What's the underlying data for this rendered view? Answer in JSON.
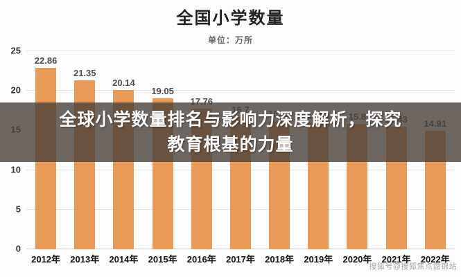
{
  "title": "全国小学数量",
  "subtitle": "单位：万所",
  "overlay": {
    "line1": "全球小学数量排名与影响力深度解析，探究",
    "line2": "教育根基的力量"
  },
  "watermark": "搜狐号@搜狐焦点盘锦站",
  "colors": {
    "bar": "#e89a56",
    "overlay_bg": "rgba(74,64,58,0.80)",
    "value_label": "#4d4d4d"
  },
  "chart_data": {
    "type": "bar",
    "title": "全国小学数量",
    "subtitle": "单位：万所",
    "xlabel": "",
    "ylabel": "",
    "categories": [
      "2012年",
      "2013年",
      "2014年",
      "2015年",
      "2016年",
      "2017年",
      "2018年",
      "2019年",
      "2020年",
      "2021年",
      "2022年"
    ],
    "values": [
      22.86,
      21.35,
      20.14,
      19.05,
      17.76,
      16.7,
      16.18,
      16.01,
      15.8,
      15.43,
      14.91
    ],
    "value_labels": [
      "22.86",
      "21.35",
      "20.14",
      "19.05",
      "17.76",
      "16.7",
      "16.18",
      "16.01",
      "15.8",
      "15.43",
      "14.91"
    ],
    "ylim": [
      0,
      25
    ],
    "yticks": [
      0,
      5,
      10,
      15,
      20,
      25
    ],
    "grid": true,
    "legend": false,
    "bar_color": "#e89a56"
  }
}
